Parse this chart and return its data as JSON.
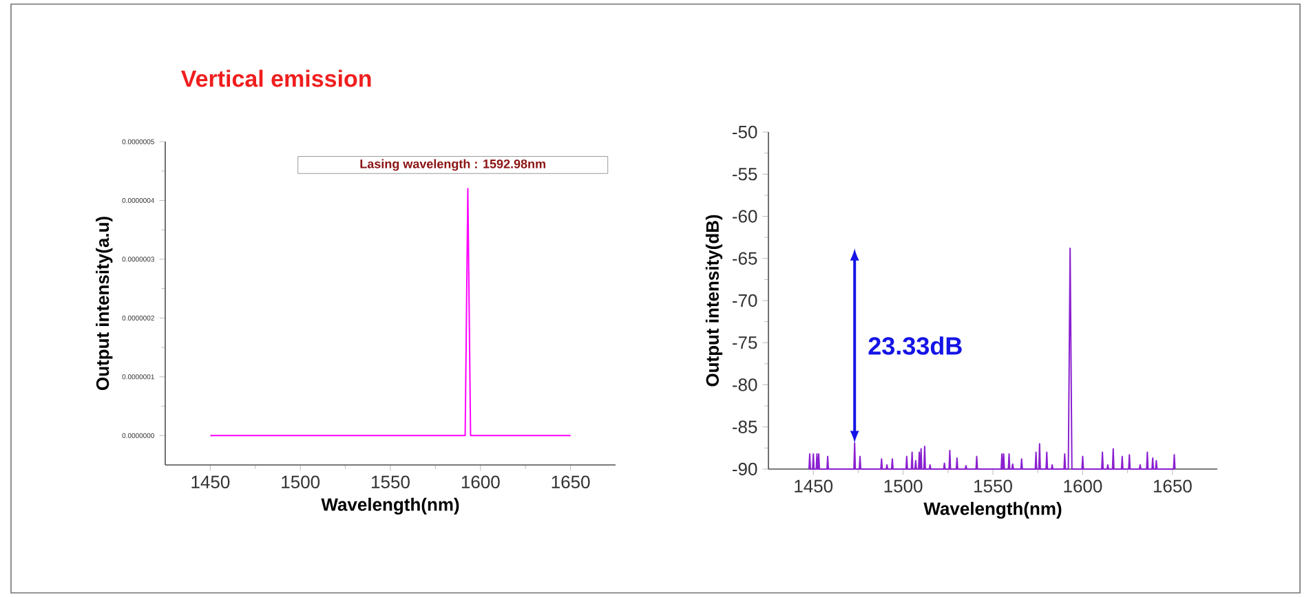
{
  "chart_data": [
    {
      "type": "line",
      "title": "Vertical emission",
      "xlabel": "Wavelength(nm)",
      "ylabel": "Output intensity(a.u)",
      "xlim": [
        1425,
        1675
      ],
      "ylim": [
        -5e-08,
        5e-07
      ],
      "xticks": [
        1450,
        1500,
        1550,
        1600,
        1650
      ],
      "yticks": [
        {
          "value": 0,
          "label": "0.0000000"
        },
        {
          "value": 1e-07,
          "label": "0.0000001"
        },
        {
          "value": 2e-07,
          "label": "0.0000002"
        },
        {
          "value": 3e-07,
          "label": "0.0000003"
        },
        {
          "value": 4e-07,
          "label": "0.0000004"
        },
        {
          "value": 5e-07,
          "label": "0.0000005"
        }
      ],
      "marker": "none",
      "annotations": [
        "Lasing wavelength : 1592.98nm"
      ],
      "series": [
        {
          "color": "#ff00ff",
          "x": [
            1450,
            1591.5,
            1592.98,
            1594.5,
            1650
          ],
          "values": [
            0,
            0,
            4.2e-07,
            0,
            0
          ]
        }
      ]
    },
    {
      "type": "line",
      "xlabel": "Wavelength(nm)",
      "ylabel": "Output intensity(dB)",
      "xlim": [
        1425,
        1675
      ],
      "ylim": [
        -90,
        -50
      ],
      "xticks": [
        1450,
        1500,
        1550,
        1600,
        1650
      ],
      "yticks": [
        -90,
        -85,
        -80,
        -75,
        -70,
        -65,
        -60,
        -55,
        -50
      ],
      "marker": "none",
      "annotations": [
        "23.33dB"
      ],
      "series": [
        {
          "color": "#8a1fd0",
          "x": [
            1447.6,
            1448,
            1448.4,
            1449.6,
            1450,
            1450.4,
            1451.6,
            1452,
            1452.4,
            1452.6,
            1453,
            1453.4,
            1457.6,
            1458,
            1458.4,
            1472.6,
            1473,
            1473.4,
            1475.6,
            1476,
            1476.4,
            1487.6,
            1488,
            1488.4,
            1490.6,
            1491,
            1491.4,
            1493.6,
            1494,
            1494.4,
            1501.6,
            1502,
            1502.4,
            1504.6,
            1505,
            1505.4,
            1506.6,
            1507,
            1507.4,
            1508.6,
            1509,
            1509.4,
            1509.6,
            1510,
            1510.4,
            1511.6,
            1512,
            1512.4,
            1514.6,
            1515,
            1515.4,
            1522.6,
            1523,
            1523.4,
            1525.6,
            1526,
            1526.4,
            1529.6,
            1530,
            1530.4,
            1534.6,
            1535,
            1535.4,
            1540.6,
            1541,
            1541.4,
            1554.6,
            1555,
            1555.4,
            1555.6,
            1556,
            1556.4,
            1558.6,
            1559,
            1559.4,
            1560.6,
            1561,
            1561.4,
            1565.6,
            1566,
            1566.4,
            1573.6,
            1574,
            1574.4,
            1575.6,
            1576,
            1576.4,
            1579.6,
            1580,
            1580.4,
            1582.6,
            1583,
            1583.4,
            1589.6,
            1590,
            1590.4,
            1592,
            1593,
            1594,
            1599.6,
            1600,
            1600.4,
            1610.6,
            1611,
            1611.4,
            1613.6,
            1614,
            1614.4,
            1616.6,
            1617,
            1617.4,
            1621.6,
            1622,
            1622.4,
            1625.6,
            1626,
            1626.4,
            1631.6,
            1632,
            1632.4,
            1635.6,
            1636,
            1636.4,
            1638.6,
            1639,
            1639.4,
            1640.6,
            1641,
            1641.4,
            1650.6,
            1651,
            1651.4
          ],
          "values": [
            -90,
            -88.2,
            -90,
            -90,
            -88.2,
            -90,
            -90,
            -88.2,
            -90,
            -90,
            -88.2,
            -90,
            -90,
            -88.5,
            -90,
            -90,
            -86.9,
            -90,
            -90,
            -88.5,
            -90,
            -90,
            -88.8,
            -90,
            -90,
            -89.5,
            -90,
            -90,
            -88.8,
            -90,
            -90,
            -88.5,
            -90,
            -90,
            -88,
            -90,
            -90,
            -89,
            -90,
            -90,
            -88,
            -90,
            -90,
            -87.6,
            -90,
            -90,
            -87.3,
            -90,
            -90,
            -89.5,
            -90,
            -90,
            -89.3,
            -90,
            -90,
            -87.8,
            -90,
            -90,
            -88.7,
            -90,
            -90,
            -89.6,
            -90,
            -90,
            -88.5,
            -90,
            -90,
            -88.2,
            -90,
            -90,
            -88.2,
            -90,
            -90,
            -88.2,
            -90,
            -90,
            -89.4,
            -90,
            -90,
            -88.8,
            -90,
            -90,
            -88,
            -90,
            -90,
            -87,
            -90,
            -90,
            -88,
            -90,
            -90,
            -89.5,
            -90,
            -90,
            -88.2,
            -90,
            -90,
            -63.8,
            -90,
            -90,
            -88.5,
            -90,
            -90,
            -88,
            -90,
            -90,
            -89.5,
            -90,
            -90,
            -87.6,
            -90,
            -90,
            -88.5,
            -90,
            -90,
            -88.3,
            -90,
            -90,
            -89.5,
            -90,
            -90,
            -88,
            -90,
            -90,
            -88.7,
            -90,
            -90,
            -89,
            -90,
            -90,
            -88.3,
            -90
          ]
        }
      ]
    }
  ]
}
